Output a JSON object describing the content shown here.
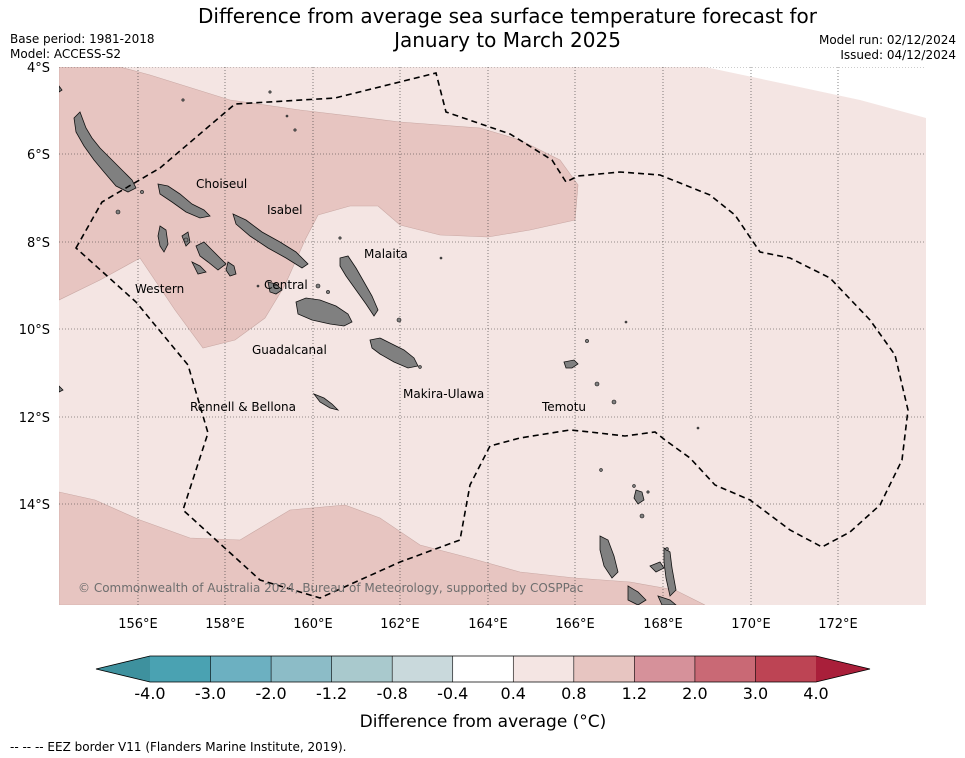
{
  "header": {
    "title_line1": "Difference from average sea surface temperature forecast for",
    "title_line2": "January to March 2025",
    "base_period": "Base period: 1981-2018",
    "model": "Model: ACCESS-S2",
    "model_run": "Model run: 02/12/2024",
    "issued": "Issued: 04/12/2024"
  },
  "map": {
    "lat_labels": [
      "4°S",
      "6°S",
      "8°S",
      "10°S",
      "12°S",
      "14°S"
    ],
    "lon_labels": [
      "156°E",
      "158°E",
      "160°E",
      "162°E",
      "164°E",
      "166°E",
      "168°E",
      "170°E",
      "172°E"
    ],
    "provinces": [
      "Choiseul",
      "Isabel",
      "Malaita",
      "Western",
      "Central",
      "Guadalcanal",
      "Makira-Ulawa",
      "Rennell & Bellona",
      "Temotu"
    ],
    "copyright": "© Commonwealth of Australia 2024, Bureau of Meteorology, supported by COSPPac",
    "colors": {
      "anomaly_0_4_to_0_8": "#f4e5e3",
      "anomaly_0_8_to_1_2": "#e7c5c1",
      "land": "#808080",
      "eez_border": "#000000"
    }
  },
  "colorbar": {
    "ticks": [
      "-4.0",
      "-3.0",
      "-2.0",
      "-1.2",
      "-0.8",
      "-0.4",
      "0.4",
      "0.8",
      "1.2",
      "2.0",
      "3.0",
      "4.0"
    ],
    "colors": [
      "#3e919e",
      "#4aa2b2",
      "#6cb0c1",
      "#8cbcc7",
      "#a9c9cd",
      "#c9d9dc",
      "#ffffff",
      "#f4e5e3",
      "#e7c5c1",
      "#d6919a",
      "#c96975",
      "#bd4454",
      "#a91f3a"
    ],
    "label": "Difference from average (°C)"
  },
  "footer": {
    "legend_text": "--  --  -- EEZ border V11 (Flanders Marine Institute, 2019)."
  }
}
